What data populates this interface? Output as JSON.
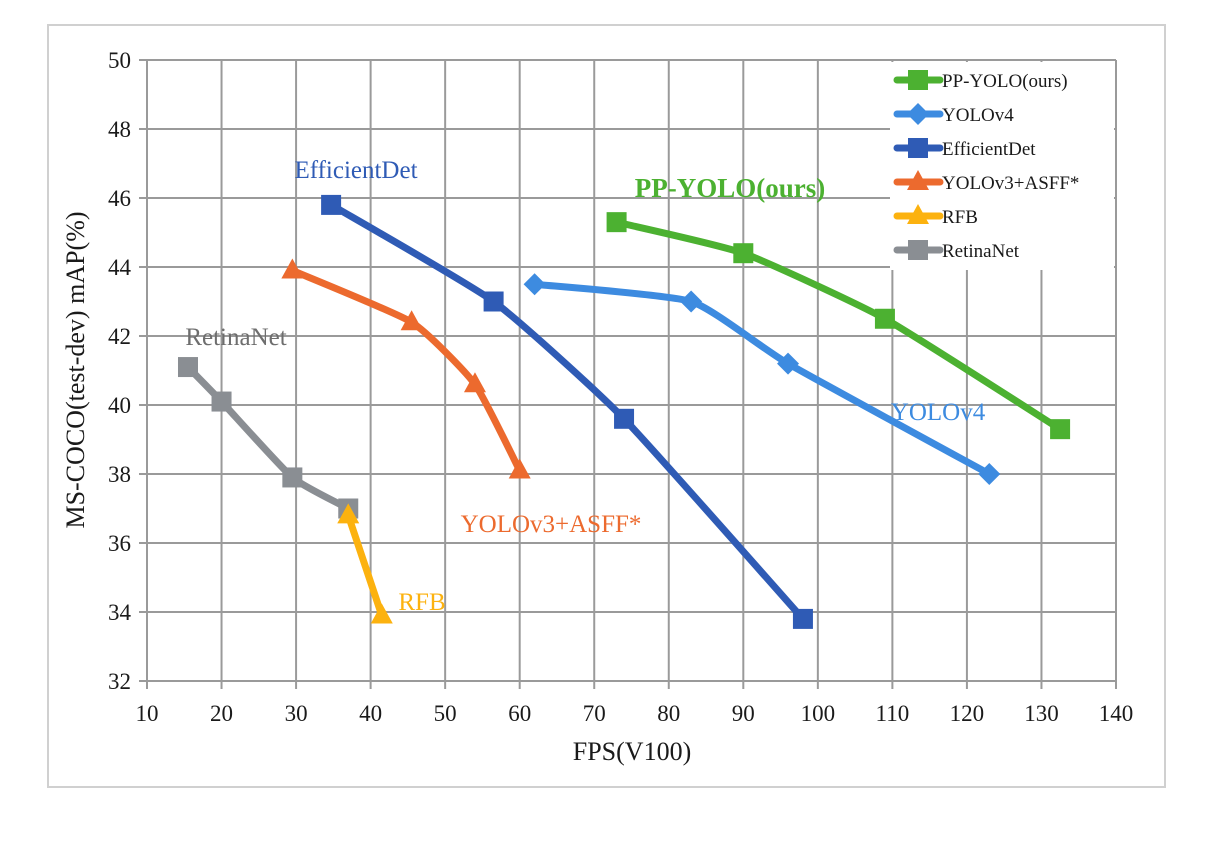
{
  "chart_data": {
    "type": "line",
    "title": "",
    "xlabel": "FPS(V100)",
    "ylabel": "MS-COCO(test-dev) mAP(%)",
    "xlim": [
      10,
      140
    ],
    "ylim": [
      32,
      50
    ],
    "xticks": [
      10,
      20,
      30,
      40,
      50,
      60,
      70,
      80,
      90,
      100,
      110,
      120,
      130,
      140
    ],
    "yticks": [
      32,
      34,
      36,
      38,
      40,
      42,
      44,
      46,
      48,
      50
    ],
    "xtick_labels": [
      "10",
      "20",
      "30",
      "40",
      "50",
      "60",
      "70",
      "80",
      "90",
      "100",
      "110",
      "120",
      "130",
      "140"
    ],
    "ytick_labels": [
      "32",
      "34",
      "36",
      "38",
      "40",
      "42",
      "44",
      "46",
      "48",
      "50"
    ],
    "grid": true,
    "legend_position": "top-right",
    "series": [
      {
        "name": "PP-YOLO(ours)",
        "color": "#4CB131",
        "marker": "square",
        "annotation": "PP-YOLO(ours)",
        "x": [
          73,
          90,
          109,
          132.5
        ],
        "y": [
          45.3,
          44.4,
          42.5,
          39.3
        ]
      },
      {
        "name": "YOLOv4",
        "color": "#3D8BE0",
        "marker": "diamond",
        "annotation": "YOLOv4",
        "x": [
          62,
          83,
          96,
          123
        ],
        "y": [
          43.5,
          43.0,
          41.2,
          38.0
        ]
      },
      {
        "name": "EfficientDet",
        "color": "#2F5BB5",
        "marker": "square",
        "annotation": "EfficientDet",
        "x": [
          34.7,
          56.5,
          74,
          98
        ],
        "y": [
          45.8,
          43.0,
          39.6,
          33.8
        ]
      },
      {
        "name": "YOLOv3+ASFF*",
        "color": "#EC6A2E",
        "marker": "triangle",
        "annotation": "YOLOv3+ASFF*",
        "x": [
          29.5,
          45.5,
          54,
          60
        ],
        "y": [
          43.9,
          42.4,
          40.6,
          38.1
        ]
      },
      {
        "name": "RFB",
        "color": "#FCB20F",
        "marker": "triangle",
        "annotation": "RFB",
        "x": [
          37,
          41.5
        ],
        "y": [
          36.8,
          33.9
        ]
      },
      {
        "name": "RetinaNet",
        "color": "#8A8E93",
        "marker": "square",
        "annotation": "RetinaNet",
        "x": [
          15.5,
          20,
          29.5,
          37
        ],
        "y": [
          41.1,
          40.1,
          37.9,
          37.0
        ]
      }
    ]
  }
}
